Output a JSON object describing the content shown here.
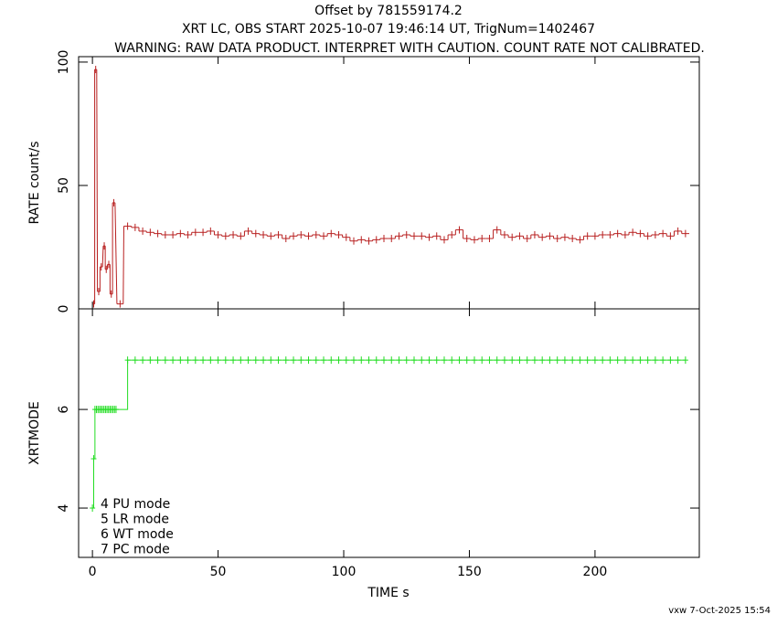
{
  "chart_data": [
    {
      "type": "line",
      "title": "Offset by 781559174.2",
      "subtitle": "XRT LC, OBS START 2025-10-07 19:46:14 UT, TrigNum=1402467",
      "note": "WARNING: RAW DATA PRODUCT. INTERPRET WITH CAUTION. COUNT RATE NOT CALIBRATED.",
      "y_label": "RATE  count/s",
      "xlim": [
        -5.5,
        241.5
      ],
      "xticks": [
        0,
        50,
        100,
        150,
        200
      ],
      "ylim": [
        0,
        102.2
      ],
      "yticks": [
        0,
        50,
        100
      ],
      "series": [
        {
          "name": "RATE",
          "color": "#b82020",
          "x": [
            0.5,
            1.3,
            2.5,
            3.5,
            4.7,
            5.5,
            6.5,
            7.5,
            8.5,
            11,
            14,
            17,
            20,
            23,
            26,
            29,
            32,
            35,
            38,
            41,
            44,
            47,
            50,
            53,
            56,
            59,
            62,
            65,
            68,
            71,
            74,
            77,
            80,
            83,
            86,
            89,
            92,
            95,
            98,
            101,
            104,
            107,
            110,
            113,
            116,
            119,
            122,
            125,
            128,
            131,
            134,
            137,
            140,
            143,
            146,
            149,
            152,
            155,
            158,
            161,
            164,
            167,
            170,
            173,
            176,
            179,
            182,
            185,
            188,
            191,
            194,
            197,
            200,
            203,
            206,
            209,
            212,
            215,
            218,
            221,
            224,
            227,
            230,
            233,
            236
          ],
          "values": [
            2,
            97,
            7,
            17,
            25.5,
            16,
            18,
            6,
            43,
            2,
            33.5,
            33,
            31.5,
            31,
            30.5,
            30,
            30,
            30.5,
            30,
            31,
            31,
            31.5,
            30,
            29.5,
            30,
            29.5,
            31.5,
            30.5,
            30,
            29.5,
            30,
            28.5,
            29.5,
            30,
            29.5,
            30,
            29.5,
            30.5,
            30,
            29,
            27.5,
            28,
            27.5,
            28,
            28.5,
            28.5,
            29.5,
            30,
            29.5,
            29.5,
            29,
            29.5,
            28,
            30,
            32,
            28.5,
            28,
            28.5,
            28.5,
            32,
            30,
            29,
            29.5,
            28.5,
            30,
            29,
            29.5,
            28.5,
            29,
            28.5,
            28,
            29.5,
            29.5,
            30,
            30,
            30.5,
            30,
            31,
            30.5,
            29.5,
            30,
            30.5,
            29.5,
            31.5,
            30.5
          ]
        }
      ]
    },
    {
      "type": "line",
      "y_label": "XRTMODE",
      "x_label": "TIME  s",
      "xlim": [
        -5.5,
        241.5
      ],
      "xticks": [
        0,
        50,
        100,
        150,
        200
      ],
      "ylim": [
        3,
        8.04
      ],
      "yticks": [
        4,
        6
      ],
      "annotations": [
        "4 PU mode",
        "5 LR mode",
        "6 WT mode",
        "7 PC mode"
      ],
      "footer": "vxw  7-Oct-2025 15:54",
      "series": [
        {
          "name": "XRTMODE",
          "color": "#22dd22",
          "x": [
            0,
            0.5,
            1,
            1.6,
            2.2,
            2.8,
            3.4,
            4,
            4.6,
            5.2,
            5.8,
            6.4,
            7,
            7.6,
            8.2,
            8.8,
            9.4,
            14,
            17,
            20,
            23,
            26,
            29,
            32,
            35,
            38,
            41,
            44,
            47,
            50,
            53,
            56,
            59,
            62,
            65,
            68,
            71,
            74,
            77,
            80,
            83,
            86,
            89,
            92,
            95,
            98,
            101,
            104,
            107,
            110,
            113,
            116,
            119,
            122,
            125,
            128,
            131,
            134,
            137,
            140,
            143,
            146,
            149,
            152,
            155,
            158,
            161,
            164,
            167,
            170,
            173,
            176,
            179,
            182,
            185,
            188,
            191,
            194,
            197,
            200,
            203,
            206,
            209,
            212,
            215,
            218,
            221,
            224,
            227,
            230,
            233,
            236
          ],
          "values": [
            4,
            5,
            6,
            6,
            6,
            6,
            6,
            6,
            6,
            6,
            6,
            6,
            6,
            6,
            6,
            6,
            6,
            7,
            7,
            7,
            7,
            7,
            7,
            7,
            7,
            7,
            7,
            7,
            7,
            7,
            7,
            7,
            7,
            7,
            7,
            7,
            7,
            7,
            7,
            7,
            7,
            7,
            7,
            7,
            7,
            7,
            7,
            7,
            7,
            7,
            7,
            7,
            7,
            7,
            7,
            7,
            7,
            7,
            7,
            7,
            7,
            7,
            7,
            7,
            7,
            7,
            7,
            7,
            7,
            7,
            7,
            7,
            7,
            7,
            7,
            7,
            7,
            7,
            7,
            7,
            7,
            7,
            7,
            7,
            7,
            7,
            7,
            7,
            7,
            7,
            7,
            7
          ]
        }
      ]
    }
  ]
}
